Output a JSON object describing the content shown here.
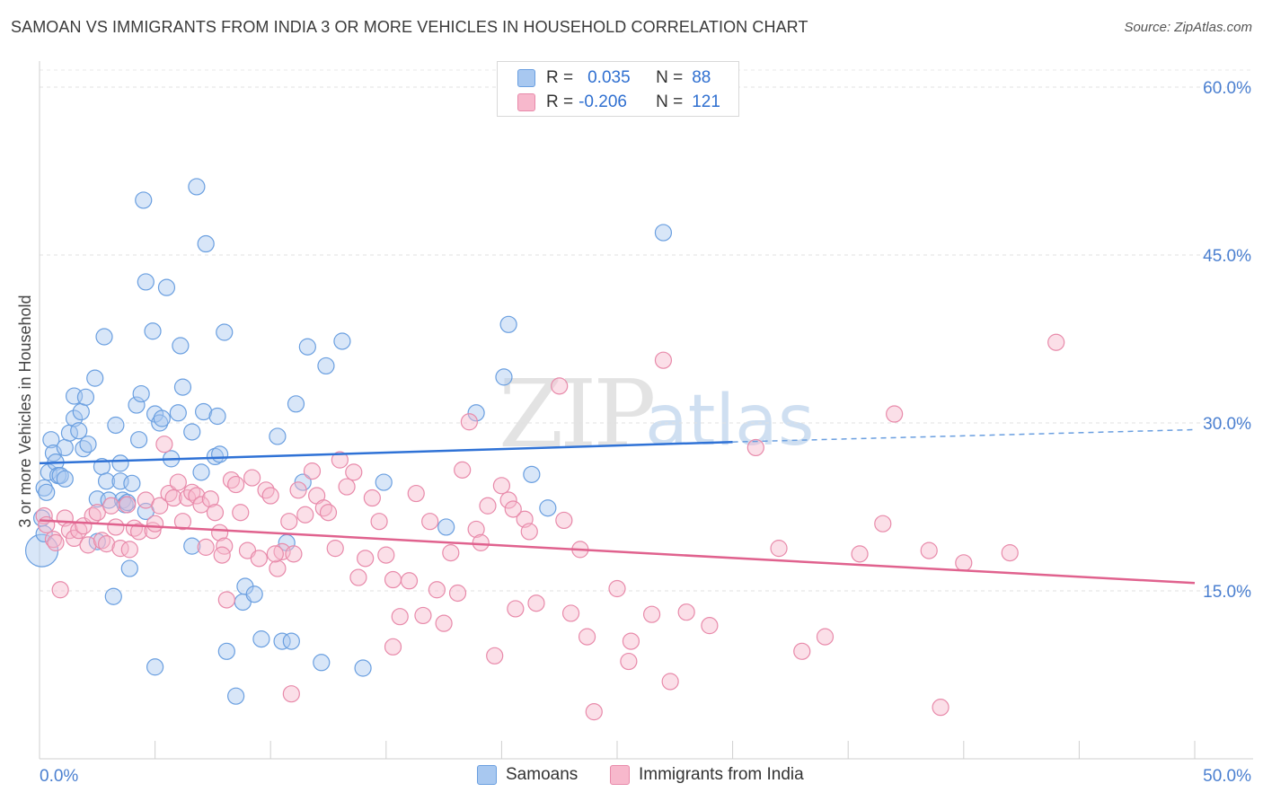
{
  "title": "SAMOAN VS IMMIGRANTS FROM INDIA 3 OR MORE VEHICLES IN HOUSEHOLD CORRELATION CHART",
  "source": "Source: ZipAtlas.com",
  "watermark": {
    "zip": "ZIP",
    "atlas": "atlas"
  },
  "legend": {
    "rows": [
      {
        "r_label": "R =",
        "r_value": "0.035",
        "n_label": "N =",
        "n_value": "88",
        "color": "#a8c8f0"
      },
      {
        "r_label": "R =",
        "r_value": "-0.206",
        "n_label": "N =",
        "n_value": "121",
        "color": "#f7b8cc"
      }
    ]
  },
  "bottom_legend": [
    {
      "label": "Samoans",
      "color": "#a8c8f0"
    },
    {
      "label": "Immigrants from India",
      "color": "#f7b8cc"
    }
  ],
  "chart_data": {
    "type": "scatter",
    "title": "SAMOAN VS IMMIGRANTS FROM INDIA 3 OR MORE VEHICLES IN HOUSEHOLD CORRELATION CHART",
    "xlabel": "",
    "ylabel": "3 or more Vehicles in Household",
    "xlim": [
      0,
      50
    ],
    "ylim": [
      0,
      60
    ],
    "x_tick_labels": [
      "0.0%",
      "50.0%"
    ],
    "y_tick_labels": [
      "15.0%",
      "30.0%",
      "45.0%",
      "60.0%"
    ],
    "y_ticks": [
      15,
      30,
      45,
      60
    ],
    "grid": "horizontal dashed",
    "legend_placement": "top-center",
    "series": [
      {
        "name": "Samoans",
        "color": "#6a9fe0",
        "fill": "#a8c8f0",
        "trend": {
          "x0": 0,
          "y0": 26.4,
          "x1": 30,
          "y1": 28.3,
          "dashed_to_x": 50,
          "dashed_to_y": 29.4
        },
        "points": [
          [
            0.2,
            24.2
          ],
          [
            0.3,
            23.8
          ],
          [
            0.4,
            25.6
          ],
          [
            0.5,
            28.5
          ],
          [
            0.6,
            27.3
          ],
          [
            0.7,
            26.5
          ],
          [
            0.8,
            25.3
          ],
          [
            0.9,
            25.3
          ],
          [
            1.1,
            25.0
          ],
          [
            1.1,
            27.8
          ],
          [
            1.3,
            29.1
          ],
          [
            1.5,
            30.4
          ],
          [
            1.5,
            32.4
          ],
          [
            1.7,
            29.3
          ],
          [
            1.8,
            31.0
          ],
          [
            1.9,
            27.7
          ],
          [
            2.0,
            32.3
          ],
          [
            2.1,
            28.1
          ],
          [
            2.4,
            34.0
          ],
          [
            2.5,
            23.2
          ],
          [
            2.5,
            19.4
          ],
          [
            2.7,
            26.1
          ],
          [
            2.8,
            37.7
          ],
          [
            2.9,
            24.8
          ],
          [
            3.0,
            23.1
          ],
          [
            3.2,
            14.5
          ],
          [
            3.3,
            29.8
          ],
          [
            3.5,
            26.4
          ],
          [
            3.5,
            24.8
          ],
          [
            3.6,
            23.1
          ],
          [
            3.7,
            22.7
          ],
          [
            3.8,
            22.9
          ],
          [
            3.9,
            17.0
          ],
          [
            4.0,
            24.6
          ],
          [
            4.2,
            31.6
          ],
          [
            4.3,
            28.5
          ],
          [
            4.4,
            32.6
          ],
          [
            4.6,
            22.1
          ],
          [
            4.5,
            49.9
          ],
          [
            4.6,
            42.6
          ],
          [
            4.9,
            38.2
          ],
          [
            5.0,
            8.2
          ],
          [
            5.0,
            30.8
          ],
          [
            5.2,
            30.0
          ],
          [
            5.3,
            30.4
          ],
          [
            5.5,
            42.1
          ],
          [
            5.7,
            26.8
          ],
          [
            6.0,
            30.9
          ],
          [
            6.1,
            36.9
          ],
          [
            6.2,
            33.2
          ],
          [
            6.6,
            29.2
          ],
          [
            6.6,
            19.0
          ],
          [
            6.8,
            51.1
          ],
          [
            7.0,
            25.6
          ],
          [
            7.1,
            31.0
          ],
          [
            7.2,
            46.0
          ],
          [
            7.6,
            27.0
          ],
          [
            7.7,
            30.6
          ],
          [
            7.8,
            27.2
          ],
          [
            8.0,
            38.1
          ],
          [
            8.1,
            9.6
          ],
          [
            8.5,
            5.6
          ],
          [
            8.8,
            14.0
          ],
          [
            8.9,
            15.4
          ],
          [
            9.3,
            14.7
          ],
          [
            9.6,
            10.7
          ],
          [
            10.3,
            28.8
          ],
          [
            10.5,
            10.5
          ],
          [
            10.7,
            19.3
          ],
          [
            10.9,
            10.5
          ],
          [
            11.1,
            31.7
          ],
          [
            11.4,
            24.7
          ],
          [
            11.6,
            36.8
          ],
          [
            12.2,
            8.6
          ],
          [
            12.4,
            35.1
          ],
          [
            13.1,
            37.3
          ],
          [
            14.0,
            8.1
          ],
          [
            14.9,
            24.7
          ],
          [
            17.6,
            20.7
          ],
          [
            18.9,
            30.9
          ],
          [
            20.1,
            34.1
          ],
          [
            20.3,
            38.8
          ],
          [
            21.3,
            25.4
          ],
          [
            22.0,
            22.4
          ],
          [
            27.0,
            47.0
          ],
          [
            0.1,
            18.6
          ],
          [
            0.1,
            21.5
          ],
          [
            0.2,
            20.1
          ]
        ],
        "radii": [
          9,
          9,
          9,
          9,
          9,
          9,
          9,
          9,
          9,
          9,
          9,
          9,
          9,
          9,
          9,
          9,
          9,
          9,
          9,
          9,
          9,
          9,
          9,
          9,
          9,
          9,
          9,
          9,
          9,
          9,
          9,
          9,
          9,
          9,
          9,
          9,
          9,
          9,
          9,
          9,
          9,
          9,
          9,
          9,
          9,
          9,
          9,
          9,
          9,
          9,
          9,
          9,
          9,
          9,
          9,
          9,
          9,
          9,
          9,
          9,
          9,
          9,
          9,
          9,
          9,
          9,
          9,
          9,
          9,
          9,
          9,
          9,
          9,
          9,
          9,
          9,
          9,
          9,
          9,
          9,
          9,
          9,
          9,
          9,
          9,
          18,
          9,
          9
        ]
      },
      {
        "name": "Immigrants from India",
        "color": "#e88aaa",
        "fill": "#f7b8cc",
        "trend": {
          "x0": 0,
          "y0": 21.3,
          "x1": 50,
          "y1": 15.7
        },
        "points": [
          [
            0.2,
            21.7
          ],
          [
            0.3,
            20.9
          ],
          [
            0.6,
            19.6
          ],
          [
            0.7,
            19.3
          ],
          [
            0.9,
            15.1
          ],
          [
            1.1,
            21.5
          ],
          [
            1.3,
            20.4
          ],
          [
            1.5,
            19.7
          ],
          [
            1.7,
            20.4
          ],
          [
            1.9,
            20.8
          ],
          [
            2.1,
            19.1
          ],
          [
            2.3,
            21.7
          ],
          [
            2.5,
            22.0
          ],
          [
            2.7,
            19.5
          ],
          [
            2.9,
            19.2
          ],
          [
            3.1,
            22.6
          ],
          [
            3.3,
            20.7
          ],
          [
            3.5,
            18.8
          ],
          [
            3.8,
            22.7
          ],
          [
            4.1,
            20.6
          ],
          [
            4.3,
            20.3
          ],
          [
            4.6,
            23.1
          ],
          [
            4.9,
            20.4
          ],
          [
            5.0,
            21.0
          ],
          [
            5.2,
            22.6
          ],
          [
            5.4,
            28.1
          ],
          [
            5.6,
            23.7
          ],
          [
            5.8,
            23.3
          ],
          [
            6.0,
            24.7
          ],
          [
            6.2,
            21.2
          ],
          [
            6.4,
            23.3
          ],
          [
            6.6,
            23.8
          ],
          [
            6.8,
            23.5
          ],
          [
            7.0,
            22.7
          ],
          [
            7.2,
            18.9
          ],
          [
            7.4,
            23.2
          ],
          [
            7.6,
            22.0
          ],
          [
            7.8,
            20.2
          ],
          [
            8.0,
            19.0
          ],
          [
            8.3,
            24.9
          ],
          [
            8.5,
            24.5
          ],
          [
            8.7,
            22.0
          ],
          [
            9.0,
            18.6
          ],
          [
            9.2,
            25.1
          ],
          [
            9.5,
            17.9
          ],
          [
            9.8,
            24.0
          ],
          [
            10.0,
            23.5
          ],
          [
            10.3,
            17.0
          ],
          [
            10.5,
            18.5
          ],
          [
            10.8,
            21.2
          ],
          [
            11.0,
            18.3
          ],
          [
            11.2,
            24.0
          ],
          [
            11.5,
            21.8
          ],
          [
            11.8,
            25.7
          ],
          [
            12.0,
            23.5
          ],
          [
            12.3,
            22.4
          ],
          [
            12.5,
            22.0
          ],
          [
            12.8,
            18.8
          ],
          [
            13.0,
            26.7
          ],
          [
            13.3,
            24.3
          ],
          [
            13.6,
            25.6
          ],
          [
            13.8,
            16.2
          ],
          [
            14.1,
            17.9
          ],
          [
            14.4,
            23.3
          ],
          [
            14.7,
            21.2
          ],
          [
            15.0,
            18.2
          ],
          [
            15.3,
            16.0
          ],
          [
            15.6,
            12.7
          ],
          [
            16.0,
            15.9
          ],
          [
            16.3,
            23.7
          ],
          [
            16.6,
            12.8
          ],
          [
            16.9,
            21.2
          ],
          [
            17.2,
            15.1
          ],
          [
            17.5,
            12.1
          ],
          [
            17.8,
            18.4
          ],
          [
            18.1,
            14.8
          ],
          [
            18.3,
            25.8
          ],
          [
            18.6,
            30.1
          ],
          [
            18.9,
            20.5
          ],
          [
            19.1,
            19.3
          ],
          [
            19.4,
            22.6
          ],
          [
            19.7,
            9.2
          ],
          [
            20.0,
            24.4
          ],
          [
            20.3,
            23.1
          ],
          [
            20.6,
            13.4
          ],
          [
            21.0,
            21.4
          ],
          [
            21.2,
            20.3
          ],
          [
            21.5,
            13.9
          ],
          [
            22.5,
            33.3
          ],
          [
            22.7,
            21.3
          ],
          [
            23.0,
            13.0
          ],
          [
            23.4,
            18.7
          ],
          [
            23.7,
            10.9
          ],
          [
            24.0,
            4.2
          ],
          [
            25.0,
            15.2
          ],
          [
            25.5,
            8.7
          ],
          [
            26.5,
            12.9
          ],
          [
            27.0,
            35.6
          ],
          [
            27.3,
            6.9
          ],
          [
            28.0,
            13.1
          ],
          [
            29.0,
            11.9
          ],
          [
            31.0,
            27.8
          ],
          [
            32.0,
            18.8
          ],
          [
            33.0,
            9.6
          ],
          [
            34.0,
            10.9
          ],
          [
            35.5,
            18.3
          ],
          [
            36.5,
            21.0
          ],
          [
            37.0,
            30.8
          ],
          [
            38.5,
            18.6
          ],
          [
            39.0,
            4.6
          ],
          [
            40.0,
            17.5
          ],
          [
            42.0,
            18.4
          ],
          [
            44.0,
            37.2
          ],
          [
            10.9,
            5.8
          ],
          [
            15.3,
            10.0
          ],
          [
            10.2,
            18.3
          ],
          [
            8.1,
            14.2
          ],
          [
            20.5,
            22.3
          ],
          [
            25.6,
            10.5
          ],
          [
            7.9,
            18.2
          ],
          [
            3.9,
            18.7
          ]
        ]
      }
    ]
  }
}
